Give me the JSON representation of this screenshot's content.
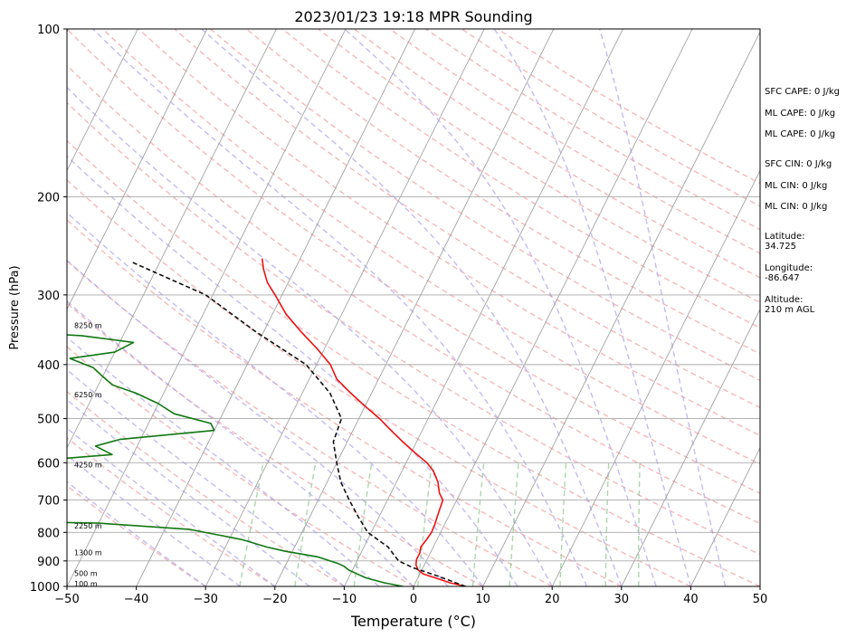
{
  "chart_data": {
    "type": "line",
    "title": "2023/01/23 19:18 MPR Sounding",
    "xlabel": "Temperature (°C)",
    "ylabel": "Pressure (hPa)",
    "xlim": [
      -50,
      50
    ],
    "ylim": [
      1000,
      100
    ],
    "y_scale": "log",
    "x_ticks": [
      -50,
      -40,
      -30,
      -20,
      -10,
      0,
      10,
      20,
      30,
      40,
      50
    ],
    "y_ticks": [
      1000,
      900,
      800,
      700,
      600,
      500,
      400,
      300,
      200,
      100
    ],
    "grid": "pressure-lines",
    "skew": true,
    "series": [
      {
        "color": "#ee1111",
        "points": [
          [
            7.5,
            1000
          ],
          [
            5,
            985
          ],
          [
            2.5,
            965
          ],
          [
            0.5,
            950
          ],
          [
            -0.5,
            935
          ],
          [
            -1.2,
            915
          ],
          [
            -1.5,
            895
          ],
          [
            -1.5,
            870
          ],
          [
            -1.8,
            850
          ],
          [
            -1.5,
            825
          ],
          [
            -1.3,
            800
          ],
          [
            -1.4,
            775
          ],
          [
            -1.6,
            750
          ],
          [
            -1.8,
            725
          ],
          [
            -2.0,
            700
          ],
          [
            -3.0,
            680
          ],
          [
            -4.0,
            650
          ],
          [
            -5.5,
            620
          ],
          [
            -7.0,
            600
          ],
          [
            -9.5,
            575
          ],
          [
            -12.0,
            550
          ],
          [
            -14.5,
            525
          ],
          [
            -17.0,
            500
          ],
          [
            -20.0,
            475
          ],
          [
            -23.0,
            450
          ],
          [
            -26.0,
            425
          ],
          [
            -28.0,
            400
          ],
          [
            -31.0,
            375
          ],
          [
            -34.5,
            350
          ],
          [
            -38.0,
            325
          ],
          [
            -41.0,
            300
          ],
          [
            -43.0,
            285
          ],
          [
            -44.5,
            270
          ],
          [
            -45.5,
            258
          ]
        ]
      },
      {
        "color": "#117711",
        "points": [
          [
            -1.5,
            1000
          ],
          [
            -4.5,
            985
          ],
          [
            -7.5,
            965
          ],
          [
            -9.0,
            950
          ],
          [
            -10.5,
            935
          ],
          [
            -11.5,
            920
          ],
          [
            -12.5,
            910
          ],
          [
            -16.0,
            885
          ],
          [
            -21.0,
            865
          ],
          [
            -24.0,
            850
          ],
          [
            -28.0,
            825
          ],
          [
            -31.5,
            810
          ],
          [
            -36.5,
            790
          ],
          [
            -50,
            770
          ],
          [
            -71,
            762
          ],
          [
            -62,
            745
          ],
          [
            -66,
            735
          ],
          [
            -70,
            728
          ],
          [
            -65,
            705
          ],
          [
            -100,
            700
          ],
          [
            -88,
            640
          ],
          [
            -73,
            617
          ],
          [
            -65,
            600
          ],
          [
            -60,
            590
          ],
          [
            -53,
            580
          ],
          [
            -56,
            560
          ],
          [
            -53,
            545
          ],
          [
            -40,
            525
          ],
          [
            -41,
            510
          ],
          [
            -47,
            490
          ],
          [
            -50,
            470
          ],
          [
            -54,
            450
          ],
          [
            -58,
            435
          ],
          [
            -60,
            420
          ],
          [
            -62,
            405
          ],
          [
            -66,
            390
          ],
          [
            -60,
            380
          ],
          [
            -58,
            365
          ],
          [
            -66,
            355
          ],
          [
            -79,
            348
          ],
          [
            -75,
            337
          ],
          [
            -82,
            328
          ],
          [
            -100,
            310
          ],
          [
            -104,
            270
          ],
          [
            -92,
            262
          ]
        ]
      },
      {
        "color": "#111111",
        "dash": "5,3",
        "points": [
          [
            7.5,
            1000
          ],
          [
            3,
            960
          ],
          [
            -1.5,
            925
          ],
          [
            -4,
            900
          ],
          [
            -6.5,
            850
          ],
          [
            -10.5,
            800
          ],
          [
            -13,
            750
          ],
          [
            -15.5,
            700
          ],
          [
            -18,
            650
          ],
          [
            -20,
            600
          ],
          [
            -22,
            550
          ],
          [
            -22.5,
            500
          ],
          [
            -26,
            450
          ],
          [
            -31.5,
            400
          ],
          [
            -41,
            350
          ],
          [
            -51,
            300
          ],
          [
            -64,
            262
          ]
        ]
      }
    ],
    "height_labels": [
      {
        "text": "100 m",
        "p": 988
      },
      {
        "text": "500 m",
        "p": 948
      },
      {
        "text": "1300 m",
        "p": 870
      },
      {
        "text": "2250 m",
        "p": 778
      },
      {
        "text": "4250 m",
        "p": 605
      },
      {
        "text": "6250 m",
        "p": 453
      },
      {
        "text": "8250 m",
        "p": 340
      }
    ]
  },
  "info": {
    "sfc_cape": "SFC CAPE: 0 J/kg",
    "ml_cape_1": "ML CAPE: 0 J/kg",
    "ml_cape_2": "ML CAPE: 0 J/kg",
    "sfc_cin": "SFC CIN: 0 J/kg",
    "ml_cin_1": "ML CIN: 0 J/kg",
    "ml_cin_2": "ML CIN: 0 J/kg",
    "latitude_label": "Latitude:",
    "latitude_value": "34.725",
    "longitude_label": "Longitude:",
    "longitude_value": "-86.647",
    "altitude_label": "Altitude:",
    "altitude_value": "210 m AGL"
  },
  "colors": {
    "dry_adiabat": "#f4a6a6",
    "moist_adiabat": "#b4aaf0",
    "mixing_ratio": "#99cc99",
    "isotherm": "#999999",
    "isobar": "#aaaaaa"
  }
}
